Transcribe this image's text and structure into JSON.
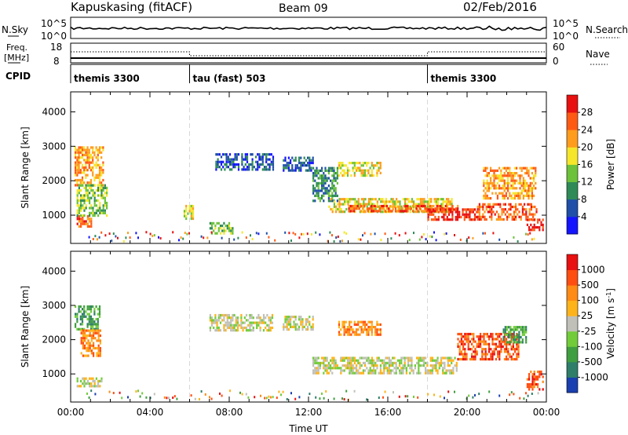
{
  "header": {
    "station": "Kapuskasing (fitACF)",
    "beam": "Beam 09",
    "date": "02/Feb/2016"
  },
  "noise_panel": {
    "left_label": "N.Sky",
    "right_label": "N.Search",
    "left_ticks": [
      "10^5",
      "10^0"
    ],
    "right_ticks": [
      "10^5",
      "10^0"
    ]
  },
  "freq_panel": {
    "left_label_1": "Freq.",
    "left_label_2": "[MHz]",
    "right_label": "Nave",
    "left_ticks": [
      "18",
      "8"
    ],
    "right_ticks": [
      "60",
      "0"
    ]
  },
  "cpid_panel": {
    "label": "CPID",
    "segments": [
      {
        "start_hour": 0,
        "name": "themis 3300"
      },
      {
        "start_hour": 6,
        "name": "tau (fast) 503"
      },
      {
        "start_hour": 18,
        "name": "themis 3300"
      }
    ]
  },
  "chart_data": [
    {
      "type": "heatmap",
      "title": "",
      "ylabel": "Slant Range [km]",
      "ylim": [
        180,
        4580
      ],
      "yticks": [
        1000,
        2000,
        3000,
        4000
      ],
      "xlim": [
        0,
        24
      ],
      "colorbar": {
        "label": "Power [dB]",
        "ticks": [
          "28",
          "24",
          "20",
          "16",
          "12",
          "8",
          "4"
        ],
        "colors": [
          "#1414ff",
          "#1f4fa8",
          "#2e8b57",
          "#6cc23a",
          "#f5e62a",
          "#ff9c1c",
          "#ff5a14",
          "#e81010"
        ]
      },
      "regions": [
        {
          "t": [
            0.2,
            1.6
          ],
          "r": [
            1900,
            3000
          ],
          "level": 5
        },
        {
          "t": [
            0.3,
            1.0
          ],
          "r": [
            650,
            1000
          ],
          "level": 6
        },
        {
          "t": [
            0.3,
            1.8
          ],
          "r": [
            1000,
            1900
          ],
          "level": 3
        },
        {
          "t": [
            5.7,
            6.2
          ],
          "r": [
            900,
            1300
          ],
          "level": 4
        },
        {
          "t": [
            7.0,
            8.2
          ],
          "r": [
            500,
            800
          ],
          "level": 3
        },
        {
          "t": [
            7.3,
            10.2
          ],
          "r": [
            2300,
            2800
          ],
          "level": 1
        },
        {
          "t": [
            10.7,
            12.2
          ],
          "r": [
            2300,
            2700
          ],
          "level": 1
        },
        {
          "t": [
            12.2,
            13.5
          ],
          "r": [
            1400,
            2400
          ],
          "level": 2
        },
        {
          "t": [
            13.5,
            15.6
          ],
          "r": [
            2150,
            2550
          ],
          "level": 4
        },
        {
          "t": [
            13.0,
            19.2
          ],
          "r": [
            1100,
            1500
          ],
          "level": 4
        },
        {
          "t": [
            14.0,
            19.5
          ],
          "r": [
            1150,
            1300
          ],
          "level": 6
        },
        {
          "t": [
            18.0,
            20.5
          ],
          "r": [
            850,
            1200
          ],
          "level": 7
        },
        {
          "t": [
            20.5,
            23.5
          ],
          "r": [
            900,
            1350
          ],
          "level": 6
        },
        {
          "t": [
            20.8,
            23.5
          ],
          "r": [
            1500,
            2400
          ],
          "level": 5
        },
        {
          "t": [
            23.0,
            23.8
          ],
          "r": [
            550,
            900
          ],
          "level": 7
        }
      ]
    },
    {
      "type": "heatmap",
      "title": "",
      "ylabel": "Slant Range [km]",
      "xlabel": "Time UT",
      "ylim": [
        180,
        4580
      ],
      "yticks": [
        1000,
        2000,
        3000,
        4000
      ],
      "xlim": [
        0,
        24
      ],
      "xticks": [
        "00:00",
        "04:00",
        "08:00",
        "12:00",
        "16:00",
        "20:00",
        "00:00"
      ],
      "colorbar": {
        "label": "Velocity [m s",
        "label_sup": "-1",
        "label_end": "]",
        "ticks": [
          "1000",
          "500",
          "100",
          "25",
          "-25",
          "-100",
          "-500",
          "-1000"
        ],
        "colors": [
          "#1a3fb0",
          "#2e7e6a",
          "#3f9e3f",
          "#72cc3a",
          "#c0c0b8",
          "#ffb31a",
          "#ff8a14",
          "#ff4e10",
          "#e81010"
        ]
      },
      "regions": [
        {
          "t": [
            0.2,
            1.5
          ],
          "r": [
            2300,
            3000
          ],
          "level": 2
        },
        {
          "t": [
            0.5,
            1.5
          ],
          "r": [
            1500,
            2300
          ],
          "level": 6
        },
        {
          "t": [
            0.3,
            1.6
          ],
          "r": [
            650,
            900
          ],
          "level": 4
        },
        {
          "t": [
            7.0,
            10.2
          ],
          "r": [
            2250,
            2750
          ],
          "level": 4
        },
        {
          "t": [
            10.7,
            12.2
          ],
          "r": [
            2300,
            2700
          ],
          "level": 4
        },
        {
          "t": [
            12.2,
            19.5
          ],
          "r": [
            1050,
            1500
          ],
          "level": 4
        },
        {
          "t": [
            13.5,
            15.6
          ],
          "r": [
            2150,
            2550
          ],
          "level": 6
        },
        {
          "t": [
            19.5,
            22.6
          ],
          "r": [
            1400,
            2200
          ],
          "level": 7
        },
        {
          "t": [
            21.8,
            23.0
          ],
          "r": [
            1900,
            2400
          ],
          "level": 2
        },
        {
          "t": [
            23.0,
            23.8
          ],
          "r": [
            550,
            1100
          ],
          "level": 7
        }
      ]
    }
  ]
}
